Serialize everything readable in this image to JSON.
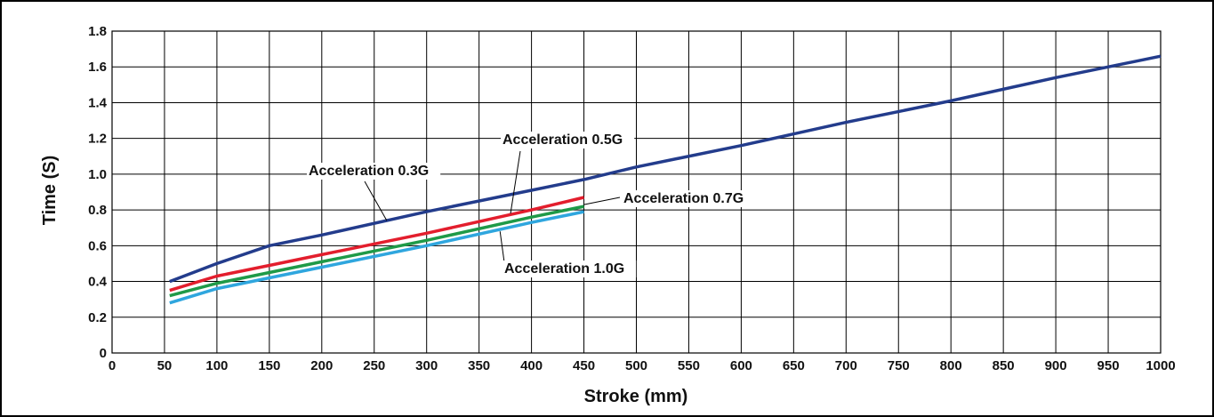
{
  "chart_data": {
    "type": "line",
    "xlabel": "Stroke (mm)",
    "ylabel": "Time (S)",
    "xlim": [
      0,
      1000
    ],
    "ylim": [
      0,
      1.8
    ],
    "xticks": [
      0,
      50,
      100,
      150,
      200,
      250,
      300,
      350,
      400,
      450,
      500,
      550,
      600,
      650,
      700,
      750,
      800,
      850,
      900,
      950,
      1000
    ],
    "yticks": [
      0,
      0.2,
      0.4,
      0.6,
      0.8,
      1.0,
      1.2,
      1.4,
      1.6,
      1.8
    ],
    "ytick_labels": [
      "0",
      "0.2",
      "0.4",
      "0.6",
      "0.8",
      "1.0",
      "1.2",
      "1.4",
      "1.6",
      "1.8"
    ],
    "grid": true,
    "series": [
      {
        "name": "Acceleration 0.3G",
        "color": "#233c8c",
        "x": [
          55,
          100,
          150,
          200,
          300,
          400,
          450,
          500,
          600,
          700,
          800,
          900,
          1000
        ],
        "y": [
          0.4,
          0.5,
          0.6,
          0.66,
          0.79,
          0.91,
          0.97,
          1.04,
          1.16,
          1.29,
          1.41,
          1.54,
          1.66
        ]
      },
      {
        "name": "Acceleration 0.5G",
        "color": "#e31e2d",
        "x": [
          55,
          100,
          150,
          200,
          300,
          400,
          450
        ],
        "y": [
          0.35,
          0.43,
          0.49,
          0.55,
          0.67,
          0.8,
          0.87
        ]
      },
      {
        "name": "Acceleration 0.7G",
        "color": "#1f9a48",
        "x": [
          55,
          100,
          150,
          200,
          300,
          400,
          450
        ],
        "y": [
          0.32,
          0.39,
          0.45,
          0.51,
          0.63,
          0.76,
          0.82
        ]
      },
      {
        "name": "Acceleration 1.0G",
        "color": "#2fa6de",
        "x": [
          55,
          100,
          150,
          200,
          300,
          400,
          450
        ],
        "y": [
          0.28,
          0.36,
          0.42,
          0.48,
          0.6,
          0.73,
          0.79
        ]
      }
    ],
    "annotations": [
      {
        "text": "Acceleration 0.3G",
        "series": 0,
        "point": [
          262,
          0.74
        ]
      },
      {
        "text": "Acceleration 0.5G",
        "series": 1,
        "point": [
          380,
          0.78
        ]
      },
      {
        "text": "Acceleration 0.7G",
        "series": 2,
        "point": [
          450,
          0.83
        ]
      },
      {
        "text": "Acceleration 1.0G",
        "series": 3,
        "point": [
          370,
          0.68
        ]
      }
    ]
  }
}
